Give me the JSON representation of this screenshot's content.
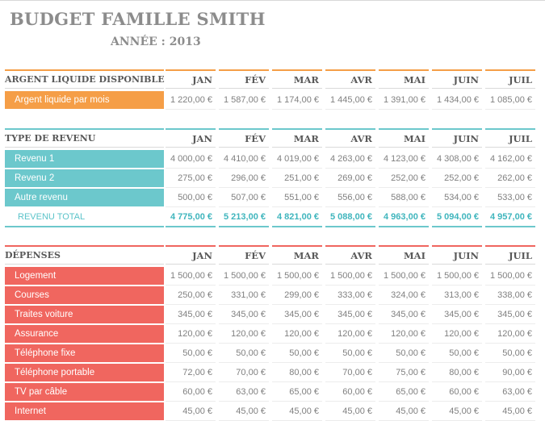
{
  "title": "BUDGET FAMILLE SMITH",
  "subtitle": "ANNÉE : 2013",
  "months": [
    "JAN",
    "FÉV",
    "MAR",
    "AVR",
    "MAI",
    "JUIN",
    "JUIL"
  ],
  "colors": {
    "cash": "#f59e47",
    "income": "#6cc8cc",
    "expense": "#f0665f",
    "income_total": "#3fb5bd"
  },
  "cash": {
    "header": "ARGENT LIQUIDE DISPONIBLE",
    "rows": [
      {
        "label": "Argent liquide par mois",
        "values": [
          "1 220,00 €",
          "1 587,00 €",
          "1 174,00 €",
          "1 445,00 €",
          "1 391,00 €",
          "1 434,00 €",
          "1 085,00 €"
        ]
      }
    ]
  },
  "income": {
    "header": "TYPE DE REVENU",
    "rows": [
      {
        "label": "Revenu 1",
        "values": [
          "4 000,00 €",
          "4 410,00 €",
          "4 019,00 €",
          "4 263,00 €",
          "4 123,00 €",
          "4 308,00 €",
          "4 162,00 €"
        ]
      },
      {
        "label": "Revenu 2",
        "values": [
          "275,00 €",
          "296,00 €",
          "251,00 €",
          "269,00 €",
          "252,00 €",
          "252,00 €",
          "262,00 €"
        ]
      },
      {
        "label": "Autre revenu",
        "values": [
          "500,00 €",
          "507,00 €",
          "551,00 €",
          "556,00 €",
          "588,00 €",
          "534,00 €",
          "533,00 €"
        ]
      }
    ],
    "total": {
      "label": "REVENU TOTAL",
      "values": [
        "4 775,00 €",
        "5 213,00 €",
        "4 821,00 €",
        "5 088,00 €",
        "4 963,00 €",
        "5 094,00 €",
        "4 957,00 €"
      ]
    }
  },
  "expenses": {
    "header": "DÉPENSES",
    "rows": [
      {
        "label": "Logement",
        "values": [
          "1 500,00 €",
          "1 500,00 €",
          "1 500,00 €",
          "1 500,00 €",
          "1 500,00 €",
          "1 500,00 €",
          "1 500,00 €"
        ]
      },
      {
        "label": "Courses",
        "values": [
          "250,00 €",
          "331,00 €",
          "299,00 €",
          "333,00 €",
          "324,00 €",
          "313,00 €",
          "338,00 €"
        ]
      },
      {
        "label": "Traites voiture",
        "values": [
          "345,00 €",
          "345,00 €",
          "345,00 €",
          "345,00 €",
          "345,00 €",
          "345,00 €",
          "345,00 €"
        ]
      },
      {
        "label": "Assurance",
        "values": [
          "120,00 €",
          "120,00 €",
          "120,00 €",
          "120,00 €",
          "120,00 €",
          "120,00 €",
          "120,00 €"
        ]
      },
      {
        "label": "Téléphone fixe",
        "values": [
          "50,00 €",
          "50,00 €",
          "50,00 €",
          "50,00 €",
          "50,00 €",
          "50,00 €",
          "50,00 €"
        ]
      },
      {
        "label": "Téléphone portable",
        "values": [
          "72,00 €",
          "70,00 €",
          "80,00 €",
          "70,00 €",
          "75,00 €",
          "80,00 €",
          "90,00 €"
        ]
      },
      {
        "label": "TV par câble",
        "values": [
          "60,00 €",
          "63,00 €",
          "65,00 €",
          "60,00 €",
          "65,00 €",
          "60,00 €",
          "63,00 €"
        ]
      },
      {
        "label": "Internet",
        "values": [
          "45,00 €",
          "45,00 €",
          "45,00 €",
          "45,00 €",
          "45,00 €",
          "45,00 €",
          "45,00 €"
        ]
      }
    ]
  }
}
